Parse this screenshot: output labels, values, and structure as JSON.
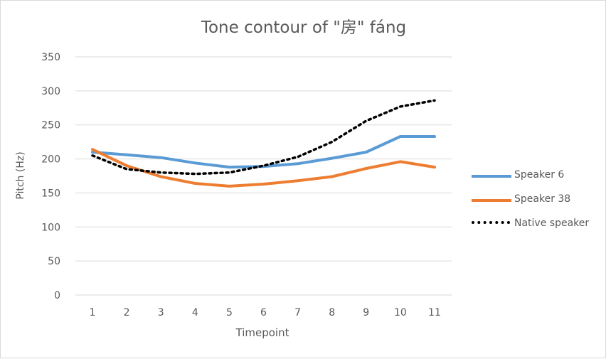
{
  "chart_data": {
    "type": "line",
    "title": "Tone contour of \"房\" fáng",
    "xlabel": "Timepoint",
    "ylabel": "Pitch (Hz)",
    "categories": [
      "1",
      "2",
      "3",
      "4",
      "5",
      "6",
      "7",
      "8",
      "9",
      "10",
      "11"
    ],
    "ylim": [
      0,
      350
    ],
    "yticks": [
      0,
      50,
      100,
      150,
      200,
      250,
      300,
      350
    ],
    "ytick_labels": [
      "0",
      "50",
      "100",
      "150",
      "200",
      "250",
      "300",
      "350"
    ],
    "grid": true,
    "legend_position": "right",
    "series": [
      {
        "name": "Speaker 6",
        "color": "#5B9BD5",
        "style": "solid",
        "values": [
          210,
          206,
          202,
          194,
          188,
          189,
          193,
          201,
          210,
          233,
          233
        ]
      },
      {
        "name": "Speaker 38",
        "color": "#ED7D31",
        "style": "solid",
        "values": [
          214,
          190,
          174,
          164,
          160,
          163,
          168,
          174,
          186,
          196,
          188
        ]
      },
      {
        "name": "Native speaker",
        "color": "#000000",
        "style": "dotted",
        "values": [
          205,
          185,
          180,
          178,
          180,
          190,
          203,
          225,
          256,
          277,
          286
        ]
      }
    ]
  }
}
